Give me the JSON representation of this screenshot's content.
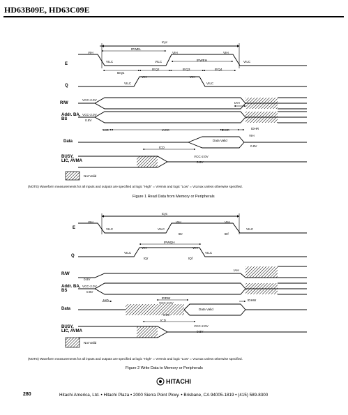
{
  "header": {
    "title": "HD63B09E, HD63C09E"
  },
  "figure1": {
    "signals": [
      "E",
      "Q",
      "R/W",
      "Addr. BA, BS",
      "Data",
      "BUSY, LIC, AVMA"
    ],
    "labels": {
      "tcyc": "tcyc",
      "tpwel": "tPWEL",
      "tpweh": "tPWEH",
      "teq1": "tEQ1",
      "teq2": "tEQ2",
      "teq3": "tEQ3",
      "teq4": "tEQ4",
      "tah": "tAH",
      "tad": "tAD",
      "tacc": "tACC",
      "tdsr": "tDSR",
      "tdhr": "tDHR",
      "tcd": "tCD",
      "vih": "VIH",
      "vilc": "VILC",
      "vcc2": "VCC-2.0V",
      "v08": "0.8V",
      "data_valid": "Data Valid"
    },
    "legend": "Not Valid",
    "note": "(NOTE)   Waveform measurements for all inputs and outputs are specified at logic \"High\" = VIHmin and logic \"Low\" = VILmax unless otherwise specified.",
    "caption": "Figure 1   Read Data from Memory or Peripherals"
  },
  "figure2": {
    "signals": [
      "E",
      "Q",
      "R/W",
      "Addr. BA, BS",
      "Data",
      "BUSY, LIC, AVMA"
    ],
    "labels": {
      "tcyc": "tcyc",
      "ter": "tEr",
      "tef": "tEf",
      "tpwqh": "tPWQH",
      "tqr": "tQr",
      "tqf": "tQf",
      "tah": "tAH",
      "tad": "tAD",
      "tddw": "tDDW",
      "tdhw": "tDHW",
      "tcd": "tCD",
      "vih": "VIH",
      "vilc": "VILC",
      "vcc2": "VCC-2.0V",
      "v08": "0.8V",
      "data_valid": "Data Valid"
    },
    "legend": "Not Valid",
    "note": "(NOTE)   Waveform measurements for all inputs and outputs are specified at logic \"High\" = VIHmin and logic \"Low\" = VILmax unless otherwise specified.",
    "caption": "Figure 2   Write Data to Memory or Peripherals"
  },
  "footer": {
    "page_number": "280",
    "logo": "HITACHI",
    "address": "Hitachi America, Ltd. • Hitachi Plaza • 2000 Sierra Point Pkwy. • Brisbane, CA 94005-1819 • (415) 589-8300"
  }
}
